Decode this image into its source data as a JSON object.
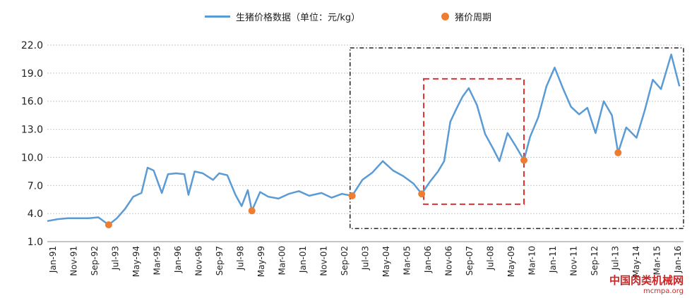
{
  "legend": {
    "series_label": "生猪价格数据（单位：元/kg）",
    "cycle_label": "猪价周期"
  },
  "watermark": {
    "brand": "中国肉类机械网",
    "url": "mcmpa.org"
  },
  "colors": {
    "line": "#5b9bd5",
    "marker": "#ed7d31",
    "grid": "#c8c8c8",
    "red_box": "#e03030",
    "black_box": "#222222"
  },
  "chart_data": {
    "type": "line",
    "ylim": [
      1.0,
      22.0
    ],
    "y_ticks": [
      "22.0",
      "19.0",
      "16.0",
      "13.0",
      "10.0",
      "7.0",
      "4.0",
      "1.0"
    ],
    "y_tick_values": [
      22,
      19,
      16,
      13,
      10,
      7,
      4,
      1
    ],
    "x_tick_labels": [
      "Jan-91",
      "Nov-91",
      "Sep-92",
      "Jul-93",
      "May-94",
      "Mar-95",
      "Jan-96",
      "Nov-96",
      "Sep-97",
      "Jul-98",
      "May-99",
      "Mar-00",
      "Jan-01",
      "Nov-01",
      "Sep-02",
      "Jul-03",
      "May-04",
      "Mar-05",
      "Jan-06",
      "Nov-06",
      "Sep-07",
      "Jul-08",
      "May-09",
      "Mar-10",
      "Jan-11",
      "Nov-11",
      "Sep-12",
      "Jul-13",
      "May-14",
      "Mar-15",
      "Jan-16"
    ],
    "series": [
      {
        "name": "生猪价格数据（单位：元/kg）",
        "points": [
          [
            "1991-01",
            3.2
          ],
          [
            "1991-06",
            3.4
          ],
          [
            "1991-11",
            3.5
          ],
          [
            "1992-04",
            3.5
          ],
          [
            "1992-09",
            3.5
          ],
          [
            "1993-02",
            3.6
          ],
          [
            "1993-07",
            2.8
          ],
          [
            "1993-11",
            3.5
          ],
          [
            "1994-03",
            4.5
          ],
          [
            "1994-07",
            5.8
          ],
          [
            "1994-11",
            6.2
          ],
          [
            "1995-02",
            8.9
          ],
          [
            "1995-05",
            8.6
          ],
          [
            "1995-09",
            6.2
          ],
          [
            "1995-12",
            8.2
          ],
          [
            "1996-04",
            8.3
          ],
          [
            "1996-08",
            8.2
          ],
          [
            "1996-10",
            6.0
          ],
          [
            "1997-01",
            8.5
          ],
          [
            "1997-05",
            8.3
          ],
          [
            "1997-10",
            7.6
          ],
          [
            "1998-01",
            8.3
          ],
          [
            "1998-05",
            8.1
          ],
          [
            "1998-09",
            6.0
          ],
          [
            "1998-12",
            4.8
          ],
          [
            "1999-03",
            6.5
          ],
          [
            "1999-05",
            4.3
          ],
          [
            "1999-09",
            6.3
          ],
          [
            "2000-01",
            5.8
          ],
          [
            "2000-06",
            5.6
          ],
          [
            "2000-11",
            6.1
          ],
          [
            "2001-04",
            6.4
          ],
          [
            "2001-09",
            5.9
          ],
          [
            "2002-03",
            6.2
          ],
          [
            "2002-08",
            5.7
          ],
          [
            "2003-01",
            6.1
          ],
          [
            "2003-06",
            5.9
          ],
          [
            "2003-11",
            7.6
          ],
          [
            "2004-04",
            8.4
          ],
          [
            "2004-09",
            9.6
          ],
          [
            "2005-02",
            8.6
          ],
          [
            "2005-07",
            8.0
          ],
          [
            "2005-12",
            7.2
          ],
          [
            "2006-04",
            6.1
          ],
          [
            "2006-08",
            7.4
          ],
          [
            "2006-12",
            8.5
          ],
          [
            "2007-03",
            9.6
          ],
          [
            "2007-06",
            13.8
          ],
          [
            "2007-09",
            15.2
          ],
          [
            "2007-12",
            16.5
          ],
          [
            "2008-03",
            17.4
          ],
          [
            "2008-07",
            15.6
          ],
          [
            "2008-11",
            12.5
          ],
          [
            "2009-03",
            10.9
          ],
          [
            "2009-06",
            9.6
          ],
          [
            "2009-10",
            12.6
          ],
          [
            "2010-02",
            11.2
          ],
          [
            "2010-06",
            9.7
          ],
          [
            "2010-09",
            12.2
          ],
          [
            "2011-01",
            14.3
          ],
          [
            "2011-05",
            17.6
          ],
          [
            "2011-09",
            19.6
          ],
          [
            "2012-01",
            17.4
          ],
          [
            "2012-05",
            15.4
          ],
          [
            "2012-09",
            14.6
          ],
          [
            "2013-01",
            15.3
          ],
          [
            "2013-05",
            12.6
          ],
          [
            "2013-09",
            16.0
          ],
          [
            "2014-01",
            14.5
          ],
          [
            "2014-04",
            10.5
          ],
          [
            "2014-08",
            13.2
          ],
          [
            "2015-01",
            12.1
          ],
          [
            "2015-05",
            15.0
          ],
          [
            "2015-09",
            18.3
          ],
          [
            "2016-01",
            17.3
          ],
          [
            "2016-06",
            21.0
          ],
          [
            "2016-10",
            17.6
          ]
        ]
      }
    ],
    "cycle_points": [
      [
        "1993-07",
        2.8
      ],
      [
        "1999-05",
        4.3
      ],
      [
        "2003-06",
        5.9
      ],
      [
        "2006-04",
        6.1
      ],
      [
        "2010-06",
        9.7
      ],
      [
        "2014-04",
        10.5
      ]
    ],
    "black_box": {
      "x_from": "2003-05",
      "x_to": "2016-12",
      "y_from": 2.4,
      "y_to": 21.7
    },
    "red_box": {
      "x_from": "2006-05",
      "x_to": "2010-06",
      "y_from": 5.0,
      "y_to": 18.4
    },
    "grid": "horizontal-dotted",
    "legend_position": "top-center"
  }
}
